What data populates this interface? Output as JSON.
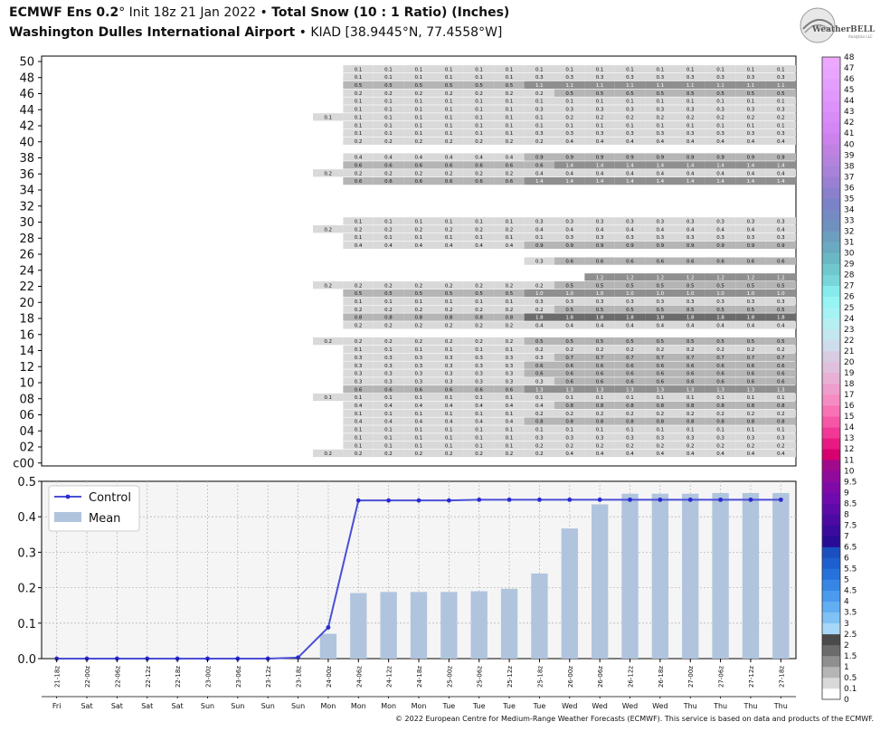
{
  "header": {
    "model": "ECMWF Ens 0.2",
    "degree": "°",
    "init": "Init 18z 21 Jan 2022",
    "bullet": "•",
    "product": "Total Snow (10 : 1 Ratio) (Inches)",
    "location": "Washington Dulles International Airport",
    "station": "KIAD [38.9445°N, 77.4558°W]"
  },
  "logo": {
    "text": "WeatherBELL",
    "subtext": "Analytics LLC"
  },
  "footer": "© 2022 European Centre for Medium-Range Weather Forecasts (ECMWF). This service is based on data and products of the ECMWF.",
  "chart_data": [
    {
      "type": "heatmap",
      "title": "Ensemble member snowfall table",
      "y_ticks": [
        "50",
        "48",
        "46",
        "44",
        "42",
        "40",
        "38",
        "36",
        "34",
        "32",
        "30",
        "28",
        "26",
        "24",
        "22",
        "20",
        "18",
        "16",
        "14",
        "12",
        "10",
        "08",
        "06",
        "04",
        "02",
        "c00"
      ],
      "member_values_final": {
        "48": 0.1,
        "47": 0.3,
        "46": 1.1,
        "45": 0.5,
        "44": 0.1,
        "43": 0.3,
        "42": 0.2,
        "41": 0.1,
        "40": 0.3,
        "39": 0.4,
        "37": 0.9,
        "36": 1.4,
        "35": 0.4,
        "34": 1.4,
        "29": 0.3,
        "28": 0.4,
        "27": 0.3,
        "26": 0.9,
        "24": 0.6,
        "22": 1.2,
        "21": 0.5,
        "20": 1.0,
        "19": 0.3,
        "18": 0.5,
        "17": 1.8,
        "16": 0.4,
        "14": 0.5,
        "13": 0.2,
        "12": 0.7,
        "11": 0.6,
        "10": 0.6,
        "9": 0.6,
        "8": 1.3,
        "7": 0.1,
        "6": 0.8,
        "5": 0.2,
        "4": 0.8,
        "3": 0.1,
        "2": 0.3,
        "1": 0.2,
        "0": 0.4
      },
      "colorbar": {
        "labels": [
          "0",
          "0.1",
          "0.5",
          "1",
          "1.5",
          "2",
          "2.5",
          "3",
          "3.5",
          "4",
          "4.5",
          "5",
          "5.5",
          "6",
          "6.5",
          "7",
          "7.5",
          "8",
          "8.5",
          "9",
          "9.5",
          "10",
          "11",
          "12",
          "13",
          "14",
          "15",
          "16",
          "17",
          "18",
          "19",
          "20",
          "21",
          "22",
          "23",
          "24",
          "25",
          "26",
          "27",
          "28",
          "29",
          "30",
          "31",
          "32",
          "33",
          "34",
          "35",
          "36",
          "37",
          "38",
          "39",
          "40",
          "41",
          "42",
          "43",
          "44",
          "45",
          "46",
          "47",
          "48"
        ],
        "colors": [
          "#ffffff",
          "#d9d9d9",
          "#b5b5b5",
          "#8f8f8f",
          "#6b6b6b",
          "#4a4a4a",
          "#a8d8f8",
          "#80c2f5",
          "#62aef2",
          "#4a9aee",
          "#3686e6",
          "#2572dc",
          "#1e5fcf",
          "#1a4fc0",
          "#280c96",
          "#3a0b9c",
          "#4c0aa2",
          "#5e0aa8",
          "#700aae",
          "#800aa6",
          "#900a9c",
          "#a00a8c",
          "#d6006e",
          "#e61a82",
          "#f23896",
          "#f656a6",
          "#f872b6",
          "#f48cc2",
          "#ee9ecc",
          "#e8b0d4",
          "#e0c0dc",
          "#d8cce2",
          "#cedceb",
          "#c4e6ef",
          "#b6eef2",
          "#a6f2f4",
          "#96f4f4",
          "#86eceb",
          "#78d6d8",
          "#6ec8cc",
          "#6ab8c4",
          "#6aaac0",
          "#6c9ebe",
          "#7090c0",
          "#768ac4",
          "#7c82c8",
          "#8a80cc",
          "#9a80d2",
          "#a882d8",
          "#b484dc",
          "#c082e2",
          "#cc82ec",
          "#d486f4",
          "#d88cf8",
          "#dc92fa",
          "#e098fc",
          "#e49efe",
          "#e8a4ff",
          "#eca8ff"
        ]
      }
    },
    {
      "type": "bar",
      "legend": [
        "Control",
        "Mean"
      ],
      "legend_position": "top-left",
      "ylim": [
        0,
        0.5
      ],
      "y_ticks": [
        "0.0",
        "0.1",
        "0.2",
        "0.3",
        "0.4",
        "0.5"
      ],
      "grid": true,
      "categories": [
        "21-18z",
        "22-00z",
        "22-06z",
        "22-12z",
        "22-18z",
        "23-00z",
        "23-06z",
        "23-12z",
        "23-18z",
        "24-00z",
        "24-06z",
        "24-12z",
        "24-18z",
        "25-00z",
        "25-06z",
        "25-12z",
        "25-18z",
        "26-00z",
        "26-06z",
        "26-12z",
        "26-18z",
        "27-00z",
        "27-06z",
        "27-12z",
        "27-18z"
      ],
      "days": [
        "Fri",
        "Sat",
        "Sat",
        "Sat",
        "Sat",
        "Sun",
        "Sun",
        "Sun",
        "Sun",
        "Mon",
        "Mon",
        "Mon",
        "Mon",
        "Tue",
        "Tue",
        "Tue",
        "Tue",
        "Wed",
        "Wed",
        "Wed",
        "Wed",
        "Thu",
        "Thu",
        "Thu",
        "Thu"
      ],
      "series": [
        {
          "name": "Control",
          "type": "line",
          "color": "#4b4fd6",
          "values": [
            0,
            0,
            0,
            0,
            0,
            0,
            0,
            0,
            0.003,
            0.088,
            0.446,
            0.446,
            0.446,
            0.446,
            0.448,
            0.448,
            0.448,
            0.448,
            0.448,
            0.448,
            0.448,
            0.448,
            0.448,
            0.448,
            0.448
          ]
        },
        {
          "name": "Mean",
          "type": "bar",
          "color": "#b0c4de",
          "values": [
            0,
            0,
            0,
            0,
            0,
            0,
            0,
            0,
            0,
            0.07,
            0.185,
            0.188,
            0.188,
            0.188,
            0.19,
            0.197,
            0.24,
            0.367,
            0.435,
            0.465,
            0.465,
            0.465,
            0.467,
            0.467,
            0.467
          ]
        }
      ]
    }
  ]
}
